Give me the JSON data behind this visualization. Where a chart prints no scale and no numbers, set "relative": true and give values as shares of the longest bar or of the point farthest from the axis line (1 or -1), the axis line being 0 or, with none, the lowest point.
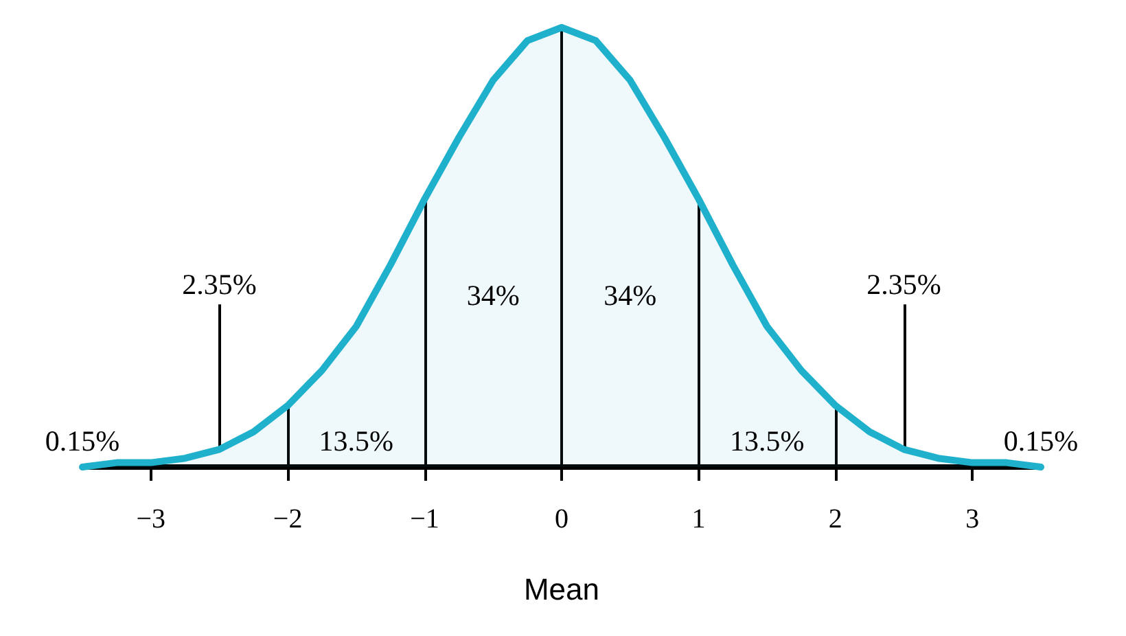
{
  "chart_data": {
    "type": "area",
    "relative": true,
    "marker": "none",
    "color": "#1fb0cc",
    "x": [
      -3.5,
      -3.25,
      -3,
      -2.75,
      -2.5,
      -2.25,
      -2,
      -1.75,
      -1.5,
      -1.25,
      -1,
      -0.75,
      -0.5,
      -0.25,
      0,
      0.25,
      0.5,
      0.75,
      1,
      1.25,
      1.5,
      1.75,
      2,
      2.25,
      2.5,
      2.75,
      3,
      3.25,
      3.5
    ],
    "values": [
      0,
      0.01,
      0.01,
      0.02,
      0.04,
      0.08,
      0.14,
      0.22,
      0.32,
      0.46,
      0.61,
      0.75,
      0.88,
      0.97,
      1,
      0.97,
      0.88,
      0.75,
      0.61,
      0.46,
      0.32,
      0.22,
      0.14,
      0.08,
      0.04,
      0.02,
      0.01,
      0.01,
      0
    ],
    "xlim": [
      -3.5,
      3.5
    ],
    "xticks": [
      {
        "value": -3,
        "label": "−3"
      },
      {
        "value": -2,
        "label": "−2"
      },
      {
        "value": -1,
        "label": "−1"
      },
      0,
      1,
      2,
      3
    ],
    "xlabel": "Mean",
    "ref_lines": [
      {
        "axis": "x",
        "value": -2
      },
      {
        "axis": "x",
        "value": -1
      },
      {
        "axis": "x",
        "value": 0
      },
      {
        "axis": "x",
        "value": 1
      },
      {
        "axis": "x",
        "value": 2
      }
    ],
    "annotations": [
      "0.15%",
      "2.35%",
      "13.5%",
      "34%",
      "34%",
      "13.5%",
      "2.35%",
      "0.15%"
    ]
  }
}
